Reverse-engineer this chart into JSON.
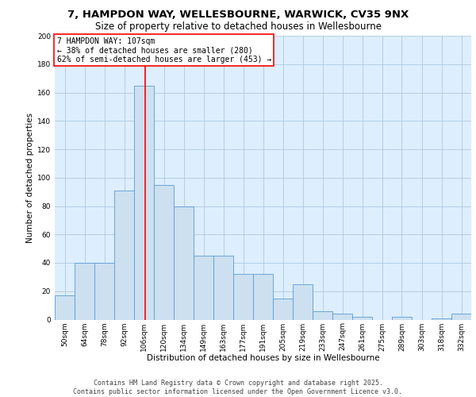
{
  "title_line1": "7, HAMPDON WAY, WELLESBOURNE, WARWICK, CV35 9NX",
  "title_line2": "Size of property relative to detached houses in Wellesbourne",
  "xlabel": "Distribution of detached houses by size in Wellesbourne",
  "ylabel": "Number of detached properties",
  "bar_color": "#cce0f0",
  "bar_edge_color": "#5b9bd5",
  "background_color": "#ddeeff",
  "grid_color": "#aec8e0",
  "vline_x": 107,
  "vline_color": "red",
  "annotation_text": "7 HAMPDON WAY: 107sqm\n← 38% of detached houses are smaller (280)\n62% of semi-detached houses are larger (453) →",
  "annotation_box_color": "white",
  "annotation_box_edge": "red",
  "categories": [
    "50sqm",
    "64sqm",
    "78sqm",
    "92sqm",
    "106sqm",
    "120sqm",
    "134sqm",
    "149sqm",
    "163sqm",
    "177sqm",
    "191sqm",
    "205sqm",
    "219sqm",
    "233sqm",
    "247sqm",
    "261sqm",
    "275sqm",
    "289sqm",
    "303sqm",
    "318sqm",
    "332sqm"
  ],
  "bin_edges": [
    43,
    57,
    71,
    85,
    99,
    113,
    127,
    141,
    155,
    169,
    183,
    197,
    211,
    225,
    239,
    253,
    267,
    281,
    295,
    309,
    323,
    337
  ],
  "values": [
    17,
    40,
    40,
    91,
    165,
    95,
    80,
    45,
    45,
    32,
    32,
    15,
    25,
    6,
    4,
    2,
    0,
    2,
    0,
    1,
    4
  ],
  "ylim": [
    0,
    200
  ],
  "yticks": [
    0,
    20,
    40,
    60,
    80,
    100,
    120,
    140,
    160,
    180,
    200
  ],
  "footer_line1": "Contains HM Land Registry data © Crown copyright and database right 2025.",
  "footer_line2": "Contains public sector information licensed under the Open Government Licence v3.0.",
  "title_fontsize": 9.5,
  "subtitle_fontsize": 8.5,
  "axis_label_fontsize": 7.5,
  "tick_fontsize": 6.5,
  "annotation_fontsize": 7,
  "footer_fontsize": 6
}
